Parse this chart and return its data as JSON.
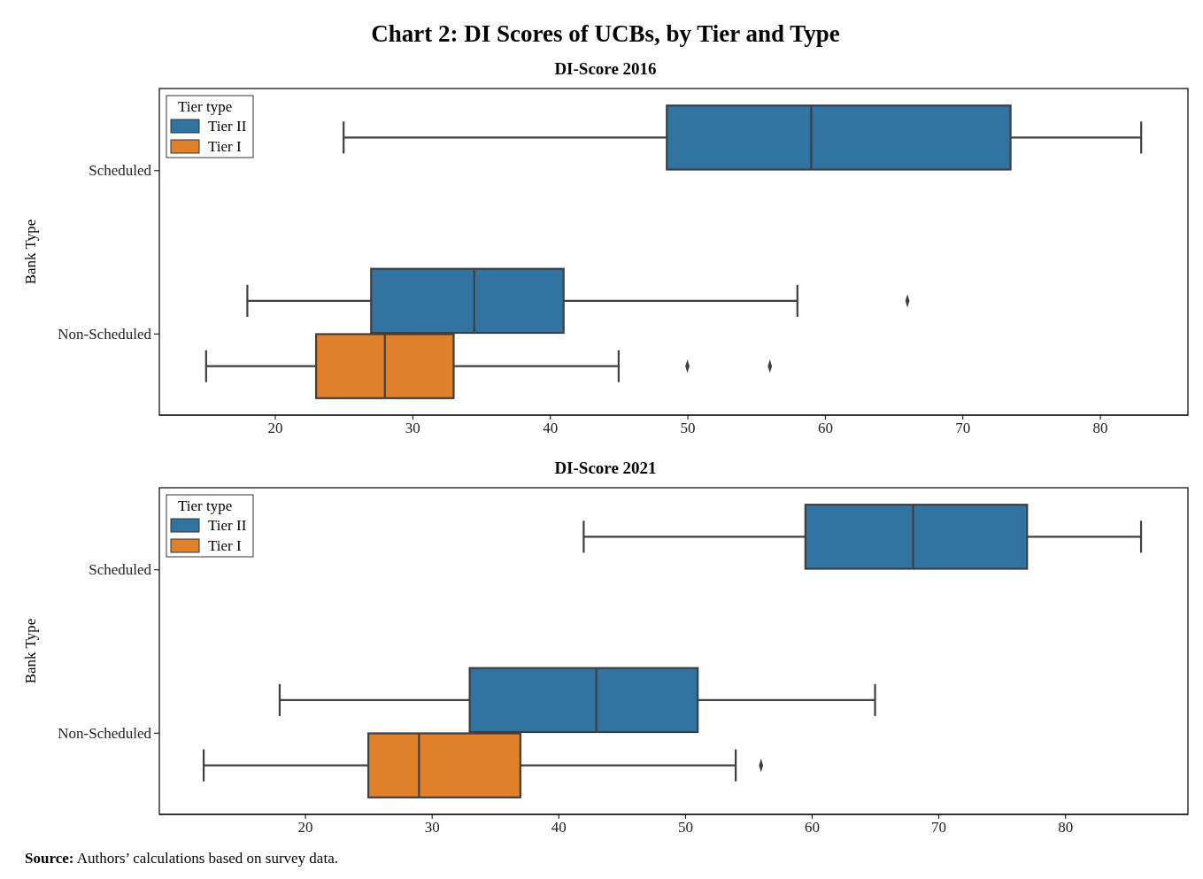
{
  "chart_data": [
    {
      "type": "box",
      "title": "Chart 2: DI Scores of UCBs, by  Tier and Type",
      "subtitle": "DI-Score 2016",
      "ylabel": "Bank Type",
      "orientation": "horizontal",
      "legend": "top left",
      "legend_title": "Tier type",
      "categories": [
        "Scheduled",
        "Non-Scheduled"
      ],
      "xlim": [
        11.6,
        86.4
      ],
      "xticks": [
        20,
        30,
        40,
        50,
        60,
        70,
        80
      ],
      "series": [
        {
          "name": "Tier II",
          "color": "#3274a1",
          "boxes": [
            {
              "low": 25,
              "q1": 48.5,
              "median": 59,
              "q3": 73.5,
              "high": 83
            },
            {
              "low": 18,
              "q1": 27,
              "median": 34.5,
              "q3": 41,
              "high": 58,
              "outliers": [
                66
              ]
            }
          ]
        },
        {
          "name": "Tier I",
          "color": "#e1812c",
          "boxes": [
            null,
            {
              "low": 15,
              "q1": 23,
              "median": 28,
              "q3": 33,
              "high": 45,
              "outliers": [
                50,
                56
              ]
            }
          ]
        }
      ]
    },
    {
      "type": "box",
      "title": "DI-Score 2021",
      "ylabel": "Bank Type",
      "orientation": "horizontal",
      "legend": "top left",
      "legend_title": "Tier type",
      "categories": [
        "Scheduled",
        "Non-Scheduled"
      ],
      "xlim": [
        8.5,
        89.7
      ],
      "xticks": [
        20,
        30,
        40,
        50,
        60,
        70,
        80
      ],
      "annotations": [
        "Source: Authors’ calculations based on survey data."
      ],
      "series": [
        {
          "name": "Tier II",
          "color": "#3274a1",
          "boxes": [
            {
              "low": 42,
              "q1": 59.5,
              "median": 68,
              "q3": 77,
              "high": 86
            },
            {
              "low": 18,
              "q1": 33,
              "median": 43,
              "q3": 51,
              "high": 65
            }
          ]
        },
        {
          "name": "Tier I",
          "color": "#e1812c",
          "boxes": [
            null,
            {
              "low": 12,
              "q1": 25,
              "median": 29,
              "q3": 37,
              "high": 54,
              "outliers": [
                56
              ]
            }
          ]
        }
      ]
    }
  ]
}
